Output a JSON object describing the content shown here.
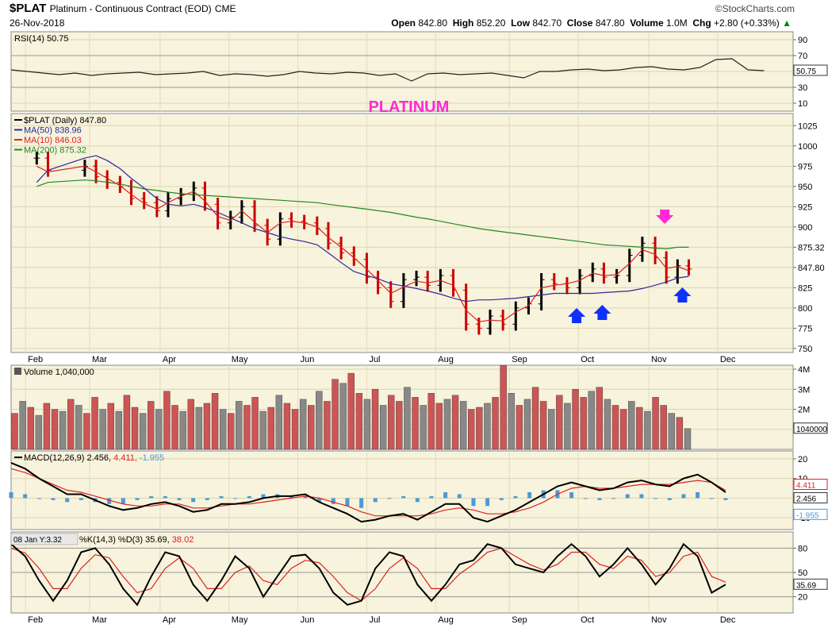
{
  "header": {
    "symbol": "$PLAT",
    "description": "Platinum - Continuous Contract (EOD)",
    "exchange": "CME",
    "date": "26-Nov-2018",
    "brand": "©StockCharts.com",
    "open_label": "Open",
    "open": "842.80",
    "high_label": "High",
    "high": "852.20",
    "low_label": "Low",
    "low": "842.70",
    "close_label": "Close",
    "close": "847.80",
    "volume_label": "Volume",
    "volume": "1.0M",
    "chg_label": "Chg",
    "chg": "+2.80 (+0.33%)",
    "chg_arrow": "▲"
  },
  "colors": {
    "panel_bg": "#f7f3dc",
    "ma50": "#2a2a9a",
    "ma10": "#dd2222",
    "ma200": "#228822",
    "annotation": "#ff2ad4",
    "arrow_up": "#1030ff",
    "vol_up": "#cc5555",
    "vol_down": "#888888"
  },
  "chart_data": [
    {
      "type": "line",
      "panel": "rsi",
      "legend": "RSI(14) 50.75",
      "last_value_label": "50.75",
      "ylim": [
        0,
        100
      ],
      "yticks": [
        90,
        70,
        50,
        30,
        10
      ],
      "ytick_labels": [
        "90",
        "70",
        "50",
        "30",
        "10"
      ],
      "reference_lines": [
        70,
        30
      ],
      "x_weeks": [
        0,
        1,
        2,
        3,
        4,
        5,
        6,
        7,
        8,
        9,
        10,
        11,
        12,
        13,
        14,
        15,
        16,
        17,
        18,
        19,
        20,
        21,
        22,
        23,
        24,
        25,
        26,
        27,
        28,
        29,
        30,
        31,
        32,
        33,
        34,
        35,
        36,
        37,
        38,
        39,
        40,
        41,
        42,
        43,
        44,
        45,
        46,
        47
      ],
      "values": [
        52,
        50,
        48,
        46,
        48,
        45,
        47,
        48,
        49,
        46,
        47,
        48,
        50,
        45,
        47,
        46,
        44,
        46,
        50,
        48,
        47,
        49,
        48,
        45,
        47,
        38,
        47,
        48,
        46,
        47,
        48,
        45,
        42,
        50,
        50,
        52,
        53,
        51,
        52,
        55,
        56,
        53,
        52,
        55,
        65,
        66,
        52,
        51
      ]
    },
    {
      "type": "line",
      "panel": "price",
      "annotation": "PLATINUM",
      "legend": [
        {
          "name": "$PLAT (Daily) 847.80"
        },
        {
          "name": "MA(50) 838.96"
        },
        {
          "name": "MA(10) 846.03"
        },
        {
          "name": "MA(200) 875.32"
        }
      ],
      "ylim": [
        745,
        1040
      ],
      "yticks": [
        1025,
        1000,
        975,
        950,
        925,
        900,
        875,
        850,
        825,
        800,
        775,
        750
      ],
      "ytick_labels": [
        "1025",
        "1000",
        "975",
        "950",
        "925",
        "900",
        "875.32",
        "847.80",
        "825",
        "800",
        "775",
        "750"
      ],
      "x_months": [
        "Feb",
        "Mar",
        "Apr",
        "May",
        "Jun",
        "Jul",
        "Aug",
        "Sep",
        "Oct",
        "Nov",
        "Dec"
      ],
      "month_weeks": [
        0.9,
        4.9,
        9.3,
        13.6,
        17.9,
        22.2,
        26.5,
        31.1,
        35.4,
        39.8,
        44.1
      ],
      "x_weeks": [
        1.6,
        2.3,
        4.6,
        5.3,
        6.0,
        6.8,
        7.5,
        8.3,
        9.1,
        9.8,
        10.6,
        11.4,
        12.1,
        12.9,
        13.7,
        14.4,
        15.2,
        16.0,
        16.8,
        17.5,
        18.3,
        19.1,
        19.8,
        20.6,
        21.4,
        22.2,
        22.9,
        23.7,
        24.5,
        25.3,
        26.0,
        26.8,
        27.6,
        28.4,
        29.2,
        29.9,
        30.7,
        31.5,
        32.3,
        33.1,
        33.9,
        34.7,
        35.5,
        36.3,
        37.0,
        37.8,
        38.6,
        39.4,
        40.2,
        40.9,
        41.6,
        42.3
      ],
      "close": [
        985,
        970,
        975,
        962,
        955,
        950,
        935,
        930,
        920,
        935,
        940,
        948,
        928,
        905,
        912,
        925,
        902,
        885,
        910,
        907,
        905,
        898,
        880,
        868,
        860,
        838,
        825,
        808,
        835,
        838,
        828,
        840,
        822,
        780,
        775,
        790,
        780,
        800,
        805,
        835,
        830,
        825,
        840,
        848,
        838,
        840,
        865,
        880,
        862,
        838,
        852,
        848
      ],
      "ma50": [
        955,
        970,
        985,
        988,
        982,
        972,
        960,
        948,
        935,
        928,
        926,
        928,
        924,
        918,
        911,
        905,
        898,
        893,
        888,
        885,
        882,
        878,
        868,
        856,
        845,
        840,
        836,
        830,
        827,
        824,
        821,
        817,
        812,
        808,
        810,
        810,
        811,
        812,
        814,
        816,
        818,
        818,
        818,
        818,
        819,
        820,
        821,
        824,
        828,
        832,
        837,
        839
      ],
      "ma10": [
        975,
        968,
        975,
        968,
        960,
        951,
        940,
        929,
        922,
        930,
        938,
        944,
        932,
        913,
        908,
        920,
        906,
        893,
        905,
        907,
        905,
        900,
        887,
        875,
        862,
        848,
        834,
        818,
        826,
        833,
        831,
        834,
        828,
        797,
        783,
        785,
        784,
        795,
        803,
        825,
        828,
        830,
        834,
        843,
        840,
        841,
        855,
        872,
        866,
        849,
        851,
        846
      ],
      "ma200": [
        950,
        955,
        958,
        957,
        955,
        953,
        950,
        947,
        945,
        943,
        941,
        940,
        939,
        938,
        937,
        936,
        935,
        934,
        933,
        932,
        931,
        930,
        928,
        926,
        924,
        922,
        920,
        918,
        915,
        912,
        910,
        907,
        904,
        901,
        898,
        896,
        894,
        892,
        890,
        888,
        886,
        884,
        882,
        880,
        878,
        877,
        876,
        875,
        874,
        873,
        875,
        875
      ]
    },
    {
      "type": "bar",
      "panel": "volume",
      "legend": "Volume 1,040,000",
      "last_value_label": "1040000",
      "ylim": [
        0,
        4200000
      ],
      "yticks": [
        4000000,
        3000000,
        2000000,
        1000000
      ],
      "ytick_labels": [
        "4M",
        "3M",
        "2M",
        "1M"
      ],
      "x_weeks": [
        0.2,
        0.7,
        1.2,
        1.7,
        2.2,
        2.7,
        3.2,
        3.7,
        4.2,
        4.7,
        5.2,
        5.7,
        6.2,
        6.7,
        7.2,
        7.7,
        8.2,
        8.7,
        9.2,
        9.7,
        10.2,
        10.7,
        11.2,
        11.7,
        12.2,
        12.7,
        13.2,
        13.7,
        14.2,
        14.7,
        15.2,
        15.7,
        16.2,
        16.7,
        17.2,
        17.7,
        18.2,
        18.7,
        19.2,
        19.7,
        20.2,
        20.7,
        21.2,
        21.7,
        22.2,
        22.7,
        23.2,
        23.7,
        24.2,
        24.7,
        25.2,
        25.7,
        26.2,
        26.7,
        27.2,
        27.7,
        28.2,
        28.7,
        29.2,
        29.7,
        30.2,
        30.7,
        31.2,
        31.7,
        32.2,
        32.7,
        33.2,
        33.7,
        34.2,
        34.7,
        35.2,
        35.7,
        36.2,
        36.7,
        37.2,
        37.7,
        38.2,
        38.7,
        39.2,
        39.7,
        40.2,
        40.7,
        41.2,
        41.7,
        42.2
      ],
      "values": [
        1800000,
        2400000,
        2100000,
        1700000,
        2300000,
        2000000,
        1900000,
        2500000,
        2200000,
        1800000,
        2600000,
        2000000,
        2300000,
        1900000,
        2700000,
        2100000,
        1800000,
        2400000,
        2000000,
        2900000,
        2200000,
        1900000,
        2500000,
        2100000,
        2300000,
        2800000,
        2000000,
        1800000,
        2400000,
        2200000,
        2600000,
        1900000,
        2100000,
        2700000,
        2300000,
        2000000,
        2500000,
        2200000,
        2900000,
        2400000,
        3500000,
        3300000,
        3800000,
        2800000,
        2500000,
        3000000,
        2200000,
        2700000,
        2400000,
        3100000,
        2600000,
        2200000,
        2800000,
        2300000,
        2500000,
        2700000,
        2400000,
        2000000,
        2100000,
        2300000,
        2600000,
        4200000,
        2800000,
        2200000,
        2500000,
        3100000,
        2400000,
        2000000,
        2700000,
        2300000,
        3000000,
        2600000,
        2900000,
        3100000,
        2500000,
        2200000,
        2000000,
        2400000,
        2100000,
        1900000,
        2600000,
        2200000,
        1800000,
        1600000,
        1040000
      ],
      "up": [
        1,
        0,
        1,
        0,
        1,
        1,
        0,
        1,
        0,
        1,
        1,
        0,
        1,
        0,
        1,
        1,
        0,
        1,
        0,
        1,
        1,
        0,
        1,
        0,
        1,
        1,
        0,
        1,
        0,
        1,
        1,
        0,
        1,
        0,
        1,
        1,
        0,
        1,
        0,
        1,
        1,
        0,
        1,
        1,
        0,
        1,
        0,
        1,
        1,
        0,
        1,
        0,
        1,
        1,
        0,
        1,
        0,
        1,
        1,
        0,
        1,
        1,
        0,
        1,
        0,
        1,
        1,
        0,
        1,
        0,
        1,
        1,
        0,
        1,
        0,
        1,
        1,
        0,
        1,
        0,
        1,
        1,
        0,
        1,
        0
      ]
    },
    {
      "type": "line",
      "panel": "macd",
      "legend_name": "MACD(12,26,9)",
      "legend_values": [
        "2.456",
        "4.411",
        "-1.955"
      ],
      "last_value_labels": [
        "4.411",
        "2.456",
        "-1.955"
      ],
      "ylim": [
        -16,
        24
      ],
      "yticks": [
        20,
        10,
        0,
        -10
      ],
      "ytick_labels": [
        "20",
        "10",
        "0",
        "-10"
      ],
      "x_weeks": [
        0,
        1,
        2,
        3,
        4,
        5,
        6,
        7,
        8,
        9,
        10,
        11,
        12,
        13,
        14,
        15,
        16,
        17,
        18,
        19,
        20,
        21,
        22,
        23,
        24,
        25,
        26,
        27,
        28,
        29,
        30,
        31,
        32,
        33,
        34,
        35,
        36,
        37,
        38,
        39,
        40,
        41,
        42,
        43,
        44,
        45,
        46,
        47,
        48,
        49,
        50,
        51
      ],
      "macd": [
        18,
        15,
        10,
        6,
        2,
        2,
        -1,
        -4,
        -6,
        -5,
        -3,
        -2,
        -4,
        -7,
        -6,
        -3,
        -3,
        -2,
        0,
        1,
        1,
        2,
        -2,
        -5,
        -8,
        -12,
        -11,
        -9,
        -8,
        -11,
        -7,
        -3,
        -3,
        -10,
        -12,
        -9,
        -6,
        -2,
        2,
        6,
        8,
        6,
        4,
        5,
        8,
        9,
        7,
        6,
        10,
        12,
        8,
        3
      ],
      "signal": [
        15,
        13,
        10,
        7,
        4,
        3,
        1,
        -1,
        -3,
        -4,
        -4,
        -3,
        -3,
        -5,
        -5,
        -4,
        -3,
        -3,
        -2,
        -1,
        0,
        1,
        0,
        -2,
        -4,
        -7,
        -9,
        -9,
        -9,
        -9,
        -8,
        -6,
        -5,
        -6,
        -8,
        -8,
        -7,
        -5,
        -2,
        2,
        5,
        6,
        5,
        5,
        6,
        7,
        7,
        7,
        8,
        9,
        8,
        4
      ],
      "histogram": [
        3,
        2,
        0,
        -1,
        -2,
        -1,
        -2,
        -3,
        -3,
        -1,
        1,
        1,
        -1,
        -2,
        -1,
        1,
        0,
        1,
        2,
        2,
        1,
        1,
        -2,
        -3,
        -4,
        -5,
        -2,
        0,
        1,
        -2,
        1,
        3,
        2,
        -4,
        -4,
        -1,
        1,
        3,
        4,
        4,
        3,
        0,
        -1,
        0,
        2,
        2,
        0,
        -1,
        2,
        3,
        0,
        -1
      ]
    },
    {
      "type": "line",
      "panel": "stochastic",
      "crosshair_label": "08 Jan Y:3.32",
      "legend_name": "%K(14,3) %D(3) 35.69",
      "legend_value2": "38.02",
      "last_value_label": "35.69",
      "ylim": [
        0,
        100
      ],
      "yticks": [
        80,
        50,
        20
      ],
      "ytick_labels": [
        "80",
        "50",
        "20"
      ],
      "reference_lines": [
        80,
        50,
        20
      ],
      "x_weeks": [
        0,
        1,
        2,
        3,
        4,
        5,
        6,
        7,
        8,
        9,
        10,
        11,
        12,
        13,
        14,
        15,
        16,
        17,
        18,
        19,
        20,
        21,
        22,
        23,
        24,
        25,
        26,
        27,
        28,
        29,
        30,
        31,
        32,
        33,
        34,
        35,
        36,
        37,
        38,
        39,
        40,
        41,
        42,
        43,
        44,
        45,
        46,
        47,
        48,
        49,
        50,
        51
      ],
      "k": [
        85,
        70,
        40,
        15,
        40,
        75,
        80,
        60,
        30,
        10,
        45,
        75,
        70,
        35,
        15,
        40,
        70,
        55,
        20,
        45,
        70,
        72,
        55,
        25,
        10,
        15,
        55,
        75,
        70,
        35,
        15,
        35,
        60,
        65,
        85,
        80,
        60,
        55,
        50,
        70,
        85,
        70,
        45,
        60,
        80,
        60,
        35,
        55,
        85,
        70,
        25,
        35
      ],
      "d": [
        80,
        74,
        55,
        30,
        30,
        55,
        72,
        68,
        45,
        25,
        30,
        55,
        68,
        55,
        30,
        30,
        50,
        58,
        40,
        35,
        55,
        65,
        62,
        45,
        25,
        15,
        30,
        55,
        68,
        55,
        30,
        30,
        48,
        60,
        75,
        80,
        70,
        60,
        53,
        60,
        75,
        75,
        60,
        55,
        70,
        65,
        45,
        50,
        70,
        75,
        45,
        38
      ]
    }
  ]
}
